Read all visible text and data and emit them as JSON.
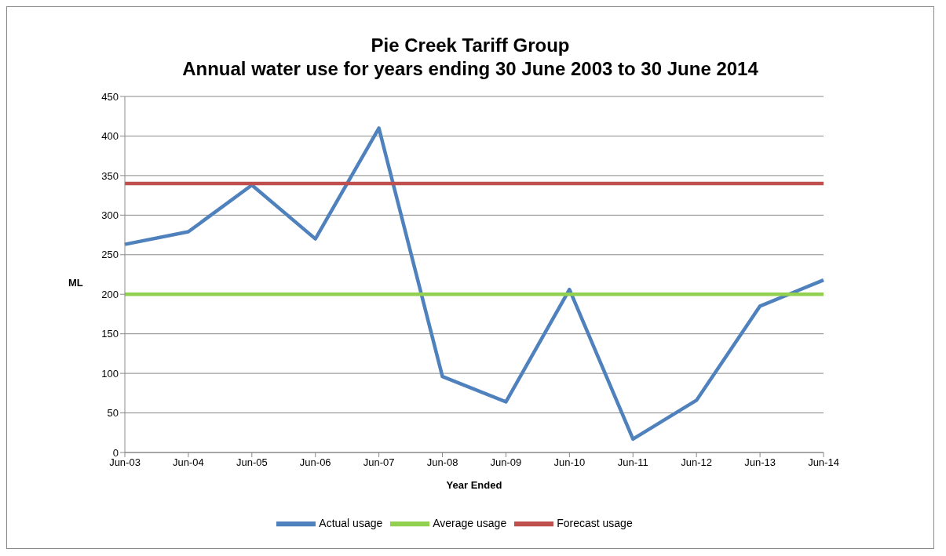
{
  "chart_data": {
    "type": "line",
    "title": "Pie Creek Tariff Group\nAnnual water use for years ending 30 June 2003 to 30 June 2014",
    "xlabel": "Year Ended",
    "ylabel": "ML",
    "categories": [
      "Jun-03",
      "Jun-04",
      "Jun-05",
      "Jun-06",
      "Jun-07",
      "Jun-08",
      "Jun-09",
      "Jun-10",
      "Jun-11",
      "Jun-12",
      "Jun-13",
      "Jun-14"
    ],
    "series": [
      {
        "name": "Actual usage",
        "color": "#4f81bd",
        "values": [
          263,
          279,
          338,
          270,
          410,
          96,
          64,
          206,
          17,
          66,
          185,
          218
        ]
      },
      {
        "name": "Forecast usage",
        "color": "#c0504d",
        "values": [
          340,
          340,
          340,
          340,
          340,
          340,
          340,
          340,
          340,
          340,
          340,
          340
        ]
      },
      {
        "name": "Average usage",
        "color": "#92d050",
        "values": [
          200,
          200,
          200,
          200,
          200,
          200,
          200,
          200,
          200,
          200,
          200,
          200
        ]
      }
    ],
    "ylim": [
      0,
      450
    ],
    "yticks": [
      0,
      50,
      100,
      150,
      200,
      250,
      300,
      350,
      400,
      450
    ],
    "grid": "y",
    "legend": "bottom",
    "marker": "none",
    "line_style": "solid"
  }
}
